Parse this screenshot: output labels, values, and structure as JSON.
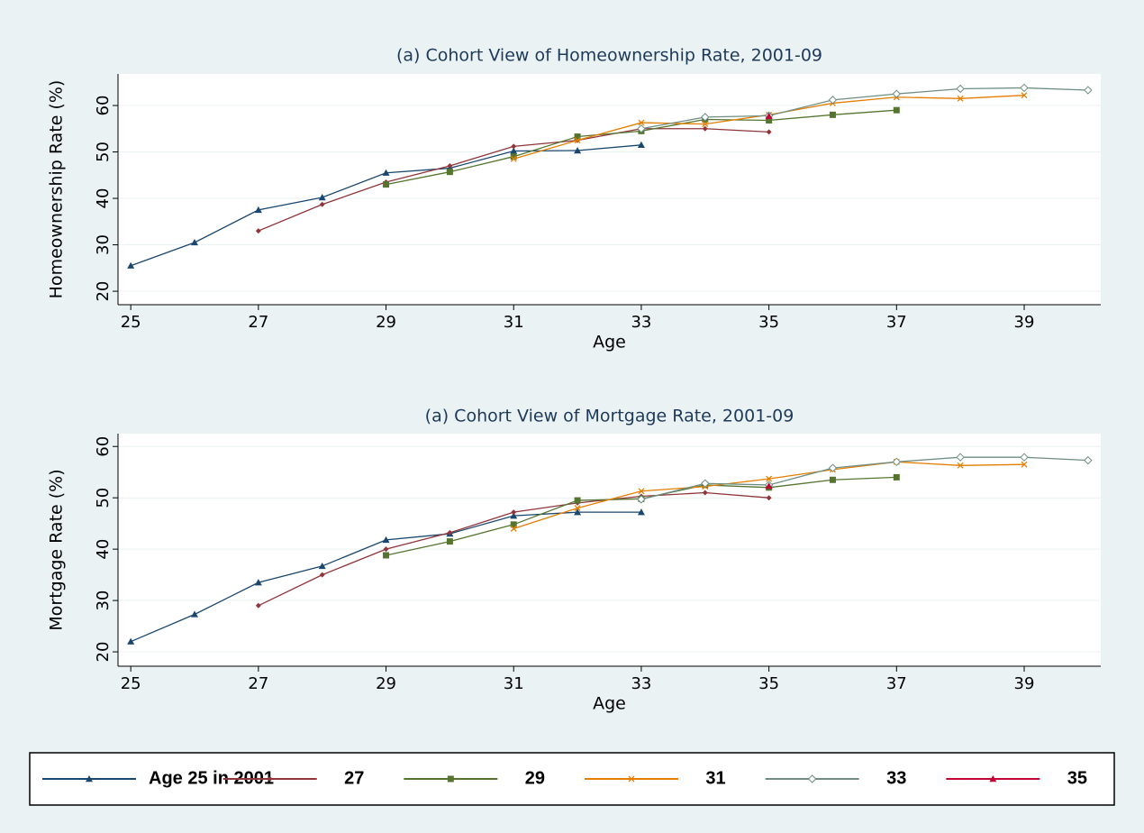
{
  "chart_data": [
    {
      "type": "line",
      "title": "(a) Cohort View of Homeownership Rate, 2001-09",
      "x_label": "Age",
      "y_label": "Homeownership Rate (%)",
      "x": [
        25,
        26,
        27,
        28,
        29,
        30,
        31,
        32,
        33,
        34,
        35,
        36,
        37,
        38,
        39,
        40
      ],
      "xlim": [
        24.8,
        40.2
      ],
      "xticks": [
        25,
        27,
        29,
        31,
        33,
        35,
        37,
        39
      ],
      "ylim": [
        17.1,
        66.8
      ],
      "yticks": [
        20,
        30,
        40,
        50,
        60
      ],
      "grid": true,
      "series": [
        {
          "name": "Age 25 in 2001",
          "color": "#1a476f",
          "marker": "triangle",
          "values": [
            25.5,
            30.5,
            37.5,
            40.2,
            45.5,
            46.5,
            50.2,
            50.3,
            51.5,
            null,
            null,
            null,
            null,
            null,
            null,
            null
          ]
        },
        {
          "name": "27",
          "color": "#90353b",
          "marker": "diamond",
          "values": [
            null,
            null,
            33,
            38.7,
            43.5,
            47,
            51.2,
            52.5,
            55,
            55,
            54.3,
            null,
            null,
            null,
            null,
            null
          ]
        },
        {
          "name": "29",
          "color": "#55752f",
          "marker": "square",
          "values": [
            null,
            null,
            null,
            null,
            43,
            45.7,
            49,
            53.3,
            54.5,
            57,
            56.8,
            58,
            59,
            null,
            null,
            null
          ]
        },
        {
          "name": "31",
          "color": "#e37e00",
          "marker": "x",
          "values": [
            null,
            null,
            null,
            null,
            null,
            null,
            48.5,
            52.5,
            56.3,
            56,
            58,
            60.5,
            61.8,
            61.5,
            62.2,
            null
          ]
        },
        {
          "name": "33",
          "color": "#6e8e84",
          "marker": "hollow-diamond",
          "values": [
            null,
            null,
            null,
            null,
            null,
            null,
            null,
            null,
            55,
            57.5,
            57.8,
            61.2,
            62.5,
            63.6,
            63.8,
            63.3
          ]
        },
        {
          "name": "35",
          "color": "#c10534",
          "marker": "triangle",
          "values": [
            null,
            null,
            null,
            null,
            null,
            null,
            null,
            null,
            null,
            null,
            57.7,
            null,
            null,
            null,
            null,
            null
          ]
        }
      ]
    },
    {
      "type": "line",
      "title": "(a) Cohort View of Mortgage Rate, 2001-09",
      "x_label": "Age",
      "y_label": "Mortgage Rate (%)",
      "x": [
        25,
        26,
        27,
        28,
        29,
        30,
        31,
        32,
        33,
        34,
        35,
        36,
        37,
        38,
        39,
        40
      ],
      "xlim": [
        24.8,
        40.2
      ],
      "xticks": [
        25,
        27,
        29,
        31,
        33,
        35,
        37,
        39
      ],
      "ylim": [
        17.2,
        62.5
      ],
      "yticks": [
        20,
        30,
        40,
        50,
        60
      ],
      "grid": true,
      "series": [
        {
          "color": "#1a476f",
          "marker": "triangle",
          "values": [
            22,
            27.3,
            33.5,
            36.7,
            41.8,
            43,
            46.5,
            47.2,
            47.2,
            null,
            null,
            null,
            null,
            null,
            null,
            null
          ]
        },
        {
          "color": "#90353b",
          "marker": "diamond",
          "values": [
            null,
            null,
            29,
            35,
            40,
            43.2,
            47.2,
            49,
            50.3,
            51,
            50,
            null,
            null,
            null,
            null,
            null
          ]
        },
        {
          "color": "#55752f",
          "marker": "square",
          "values": [
            null,
            null,
            null,
            null,
            38.8,
            41.5,
            44.8,
            49.5,
            49.8,
            52.5,
            52,
            53.5,
            54,
            null,
            null,
            null
          ]
        },
        {
          "color": "#e37e00",
          "marker": "x",
          "values": [
            null,
            null,
            null,
            null,
            null,
            null,
            44,
            48,
            51.3,
            52.2,
            53.7,
            55.5,
            57,
            56.3,
            56.5,
            null
          ]
        },
        {
          "color": "#6e8e84",
          "marker": "hollow-diamond",
          "values": [
            null,
            null,
            null,
            null,
            null,
            null,
            null,
            null,
            49.7,
            52.8,
            52.5,
            55.8,
            57,
            57.9,
            57.9,
            57.3
          ]
        },
        {
          "color": "#c10534",
          "marker": "triangle",
          "values": [
            null,
            null,
            null,
            null,
            null,
            null,
            null,
            null,
            null,
            null,
            52.3,
            null,
            null,
            null,
            null,
            null
          ]
        }
      ]
    }
  ]
}
